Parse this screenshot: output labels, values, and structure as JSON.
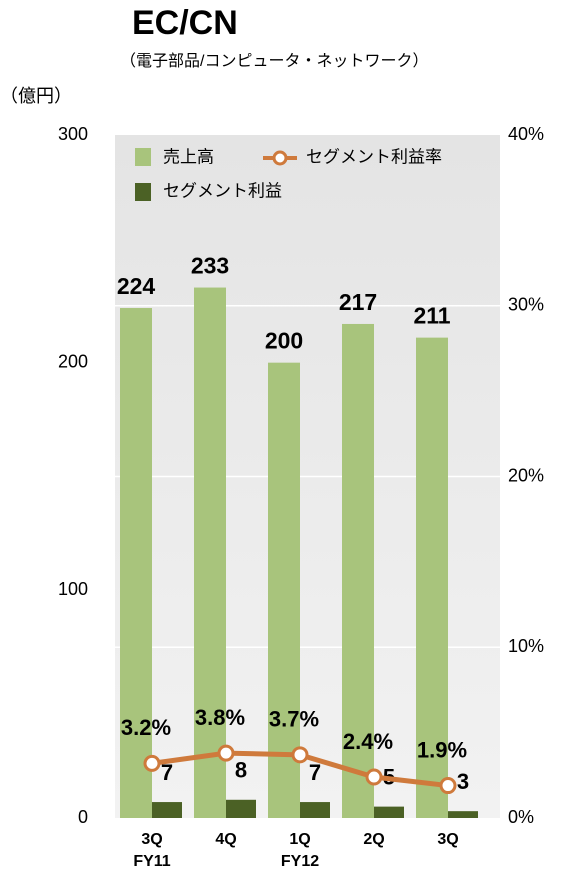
{
  "chart_data": {
    "type": "bar",
    "title": "EC/CN",
    "subtitle": "（電子部品/コンピュータ・ネットワーク）",
    "y_axis_label": "（億円）",
    "categories": [
      "3Q",
      "4Q",
      "1Q",
      "2Q",
      "3Q"
    ],
    "category_groups": [
      "FY11",
      null,
      "FY12",
      null,
      null
    ],
    "series": [
      {
        "name": "売上高",
        "color": "#a8c47c",
        "values": [
          224,
          233,
          200,
          217,
          211
        ]
      },
      {
        "name": "セグメント利益",
        "color": "#4b6125",
        "values": [
          7,
          8,
          7,
          5,
          3
        ]
      },
      {
        "name": "セグメント利益率",
        "color": "#cf7a3c",
        "axis": "y2",
        "type": "line",
        "values": [
          3.2,
          3.8,
          3.7,
          2.4,
          1.9
        ],
        "value_labels": [
          "3.2%",
          "3.8%",
          "3.7%",
          "2.4%",
          "1.9%"
        ]
      }
    ],
    "ylim": [
      0,
      300
    ],
    "yticks": [
      0,
      100,
      200,
      300
    ],
    "y2lim": [
      0,
      40
    ],
    "y2ticks": [
      {
        "value": 0,
        "label": "0%"
      },
      {
        "value": 10,
        "label": "10%"
      },
      {
        "value": 20,
        "label": "20%"
      },
      {
        "value": 30,
        "label": "30%"
      },
      {
        "value": 40,
        "label": "40%"
      }
    ],
    "grid": true,
    "legend": "top-left"
  }
}
